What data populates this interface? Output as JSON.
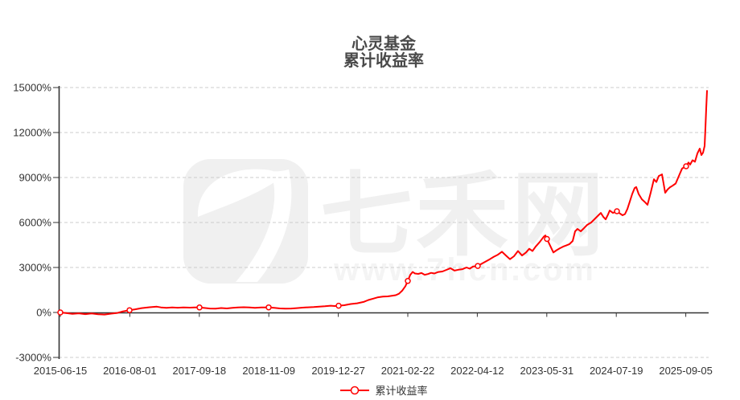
{
  "chart": {
    "title_line1": "心灵基金",
    "title_line2": "累计收益率",
    "legend_label": "累计收益率"
  },
  "watermark": {
    "brand_text": "七禾网",
    "url_text": "www.7hcn.com"
  },
  "colors": {
    "line": "#ff0000",
    "axis": "#333333",
    "grid": "#cccccc",
    "title": "#4a4a4a",
    "watermark_fill": "#f0f0f0",
    "watermark_url": "#f4f4f4",
    "marker_fill": "#ffffff"
  },
  "chart_data": {
    "type": "line",
    "title": "心灵基金 累计收益率",
    "series_name": "累计收益率",
    "y_unit": "%",
    "ylim": [
      -3000,
      15000
    ],
    "grid": "dashed-horizontal",
    "legend_position": "bottom",
    "y_ticks_pct": [
      15000,
      12000,
      9000,
      6000,
      3000,
      0,
      -3000
    ],
    "y_tick_labels": [
      "15000%",
      "12000%",
      "9000%",
      "6000%",
      "3000%",
      "0%",
      "-3000%"
    ],
    "x_tick_labels": [
      "2015-06-15",
      "2016-08-01",
      "2017-09-18",
      "2018-11-09",
      "2019-12-27",
      "2021-02-22",
      "2022-04-12",
      "2023-05-31",
      "2024-07-19",
      "2025-09-05"
    ],
    "markers": [
      [
        0,
        0
      ],
      [
        0.107,
        150
      ],
      [
        0.2152,
        330
      ],
      [
        0.3221,
        340
      ],
      [
        0.4303,
        450
      ],
      [
        0.5373,
        2100
      ],
      [
        0.6455,
        3100
      ],
      [
        0.7525,
        4900
      ],
      [
        0.8607,
        6750
      ],
      [
        0.9677,
        9750
      ]
    ],
    "points": [
      [
        0,
        0
      ],
      [
        0.0087,
        -40
      ],
      [
        0.0187,
        -90
      ],
      [
        0.0286,
        -60
      ],
      [
        0.0386,
        -110
      ],
      [
        0.0485,
        -70
      ],
      [
        0.0585,
        -120
      ],
      [
        0.0684,
        -140
      ],
      [
        0.0784,
        -80
      ],
      [
        0.0883,
        -30
      ],
      [
        0.0958,
        60
      ],
      [
        0.107,
        150
      ],
      [
        0.1157,
        210
      ],
      [
        0.1256,
        290
      ],
      [
        0.1381,
        350
      ],
      [
        0.1493,
        385
      ],
      [
        0.1555,
        340
      ],
      [
        0.1642,
        310
      ],
      [
        0.1729,
        330
      ],
      [
        0.1816,
        315
      ],
      [
        0.1903,
        330
      ],
      [
        0.2002,
        320
      ],
      [
        0.2077,
        335
      ],
      [
        0.2152,
        330
      ],
      [
        0.2226,
        300
      ],
      [
        0.2313,
        265
      ],
      [
        0.2401,
        250
      ],
      [
        0.2488,
        295
      ],
      [
        0.2575,
        270
      ],
      [
        0.2662,
        305
      ],
      [
        0.2749,
        330
      ],
      [
        0.2836,
        350
      ],
      [
        0.2923,
        340
      ],
      [
        0.301,
        310
      ],
      [
        0.3109,
        330
      ],
      [
        0.3221,
        340
      ],
      [
        0.3308,
        310
      ],
      [
        0.3395,
        270
      ],
      [
        0.3482,
        255
      ],
      [
        0.357,
        265
      ],
      [
        0.3657,
        290
      ],
      [
        0.3744,
        320
      ],
      [
        0.3831,
        345
      ],
      [
        0.3918,
        360
      ],
      [
        0.4005,
        385
      ],
      [
        0.4092,
        410
      ],
      [
        0.4179,
        450
      ],
      [
        0.4241,
        430
      ],
      [
        0.4303,
        450
      ],
      [
        0.439,
        480
      ],
      [
        0.449,
        560
      ],
      [
        0.459,
        610
      ],
      [
        0.4689,
        700
      ],
      [
        0.4764,
        830
      ],
      [
        0.4838,
        920
      ],
      [
        0.4913,
        1010
      ],
      [
        0.4988,
        1060
      ],
      [
        0.5062,
        1070
      ],
      [
        0.5137,
        1120
      ],
      [
        0.5187,
        1150
      ],
      [
        0.5236,
        1250
      ],
      [
        0.5286,
        1450
      ],
      [
        0.5336,
        1750
      ],
      [
        0.5373,
        2100
      ],
      [
        0.541,
        2500
      ],
      [
        0.5448,
        2700
      ],
      [
        0.5485,
        2600
      ],
      [
        0.5535,
        2570
      ],
      [
        0.5585,
        2630
      ],
      [
        0.5634,
        2510
      ],
      [
        0.5684,
        2560
      ],
      [
        0.5734,
        2640
      ],
      [
        0.5783,
        2600
      ],
      [
        0.5846,
        2700
      ],
      [
        0.5908,
        2730
      ],
      [
        0.597,
        2840
      ],
      [
        0.6032,
        2950
      ],
      [
        0.6095,
        2790
      ],
      [
        0.6157,
        2850
      ],
      [
        0.6219,
        2890
      ],
      [
        0.6281,
        3000
      ],
      [
        0.6331,
        2920
      ],
      [
        0.6381,
        3060
      ],
      [
        0.6455,
        3100
      ],
      [
        0.6517,
        3250
      ],
      [
        0.658,
        3400
      ],
      [
        0.6642,
        3550
      ],
      [
        0.6704,
        3720
      ],
      [
        0.6766,
        3850
      ],
      [
        0.6828,
        4050
      ],
      [
        0.6891,
        3800
      ],
      [
        0.6953,
        3550
      ],
      [
        0.7015,
        3750
      ],
      [
        0.7077,
        4100
      ],
      [
        0.7139,
        3800
      ],
      [
        0.7201,
        4000
      ],
      [
        0.7251,
        4250
      ],
      [
        0.7301,
        4100
      ],
      [
        0.7351,
        4400
      ],
      [
        0.7413,
        4700
      ],
      [
        0.7475,
        5050
      ],
      [
        0.75,
        5140
      ],
      [
        0.7525,
        4900
      ],
      [
        0.7575,
        4450
      ],
      [
        0.7624,
        4000
      ],
      [
        0.7674,
        4150
      ],
      [
        0.7724,
        4280
      ],
      [
        0.7774,
        4390
      ],
      [
        0.7824,
        4470
      ],
      [
        0.7873,
        4560
      ],
      [
        0.7923,
        4770
      ],
      [
        0.796,
        5410
      ],
      [
        0.7998,
        5570
      ],
      [
        0.8047,
        5410
      ],
      [
        0.8097,
        5620
      ],
      [
        0.8147,
        5840
      ],
      [
        0.8209,
        6000
      ],
      [
        0.8271,
        6270
      ],
      [
        0.8333,
        6535
      ],
      [
        0.8358,
        6640
      ],
      [
        0.8396,
        6380
      ],
      [
        0.8433,
        6210
      ],
      [
        0.847,
        6540
      ],
      [
        0.8495,
        6800
      ],
      [
        0.8545,
        6640
      ],
      [
        0.8607,
        6750
      ],
      [
        0.8657,
        6590
      ],
      [
        0.8694,
        6480
      ],
      [
        0.8731,
        6560
      ],
      [
        0.8769,
        6900
      ],
      [
        0.8806,
        7400
      ],
      [
        0.8843,
        7900
      ],
      [
        0.8881,
        8300
      ],
      [
        0.8905,
        8360
      ],
      [
        0.8943,
        7900
      ],
      [
        0.8993,
        7550
      ],
      [
        0.9042,
        7350
      ],
      [
        0.908,
        7180
      ],
      [
        0.9129,
        8000
      ],
      [
        0.9179,
        8890
      ],
      [
        0.9216,
        8700
      ],
      [
        0.9254,
        9100
      ],
      [
        0.9303,
        9210
      ],
      [
        0.9328,
        8600
      ],
      [
        0.9353,
        7980
      ],
      [
        0.939,
        8200
      ],
      [
        0.9428,
        8350
      ],
      [
        0.9465,
        8450
      ],
      [
        0.9515,
        8600
      ],
      [
        0.9565,
        9100
      ],
      [
        0.9614,
        9600
      ],
      [
        0.9652,
        9700
      ],
      [
        0.9677,
        9750
      ],
      [
        0.9714,
        10000
      ],
      [
        0.9739,
        9860
      ],
      [
        0.9776,
        10150
      ],
      [
        0.9813,
        10050
      ],
      [
        0.9851,
        10600
      ],
      [
        0.9888,
        10930
      ],
      [
        0.9913,
        10500
      ],
      [
        0.9938,
        10650
      ],
      [
        0.9963,
        11100
      ],
      [
        0.9975,
        12300
      ],
      [
        0.9988,
        13600
      ],
      [
        1,
        14780
      ]
    ]
  }
}
